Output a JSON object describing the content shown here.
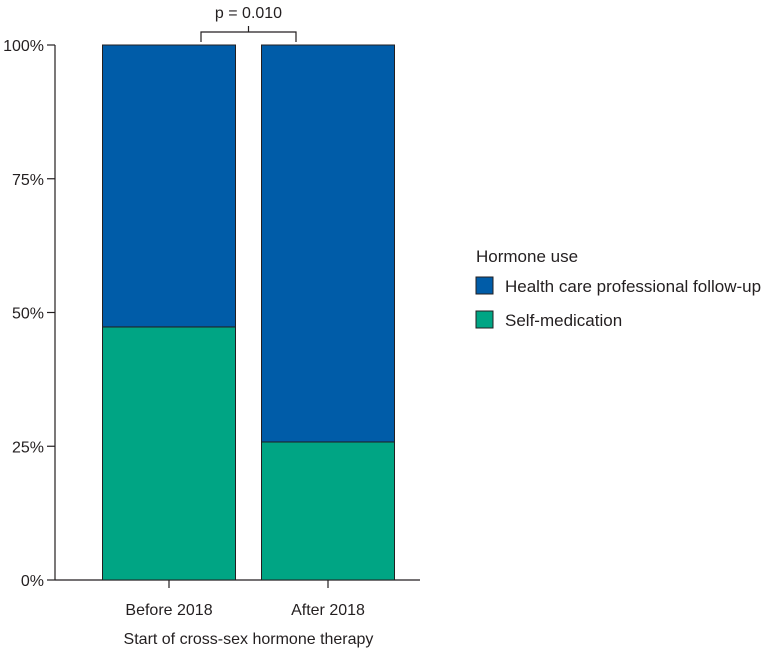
{
  "chart_data": {
    "type": "bar",
    "stacked": true,
    "percent_scale": true,
    "categories": [
      "Before 2018",
      "After 2018"
    ],
    "series": [
      {
        "name": "Self-medication",
        "values": [
          47.3,
          25.8
        ],
        "color": "#00a584"
      },
      {
        "name": "Health care professional follow-up",
        "values": [
          52.7,
          74.2
        ],
        "color": "#005ca8"
      }
    ],
    "xlabel": "Start of cross-sex hormone therapy",
    "ylabel": "",
    "ylim": [
      0,
      100
    ],
    "yticks": [
      "0%",
      "25%",
      "50%",
      "75%",
      "100%"
    ],
    "ytick_values": [
      0,
      25,
      50,
      75,
      100
    ],
    "legend": {
      "title": "Hormone use",
      "placement": "right",
      "entries": [
        "Health care professional follow-up",
        "Self-medication"
      ]
    },
    "annotation": "p = 0.010",
    "grid": false
  }
}
